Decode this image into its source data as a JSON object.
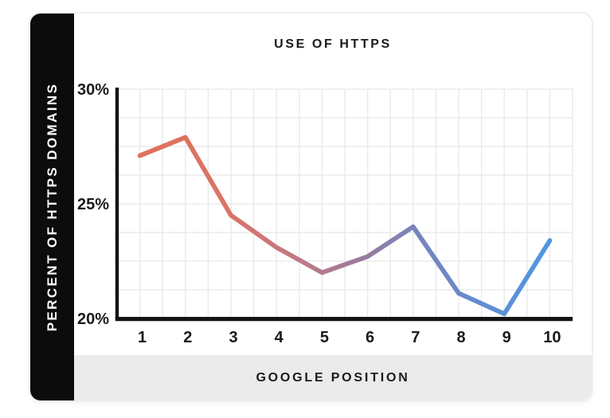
{
  "card": {
    "background": "#ffffff",
    "border_color": "#efefef",
    "sidebar_background": "#0c0c0c",
    "footer_background": "#ebebeb",
    "text_color": "#1b1b1b"
  },
  "chart_data": {
    "type": "line",
    "title": "USE OF HTTPS",
    "xlabel": "GOOGLE POSITION",
    "ylabel": "PERCENT OF HTTPS DOMAINS",
    "x": [
      1,
      2,
      3,
      4,
      5,
      6,
      7,
      8,
      9,
      10
    ],
    "x_tick_labels": [
      "1",
      "2",
      "3",
      "4",
      "5",
      "6",
      "7",
      "8",
      "9",
      "10"
    ],
    "series": [
      {
        "name": "Percent of HTTPS domains",
        "values": [
          27.1,
          27.9,
          24.5,
          23.1,
          22.0,
          22.7,
          24.0,
          21.1,
          20.2,
          23.4
        ]
      }
    ],
    "y_ticks": [
      {
        "value": 30,
        "label": "30%"
      },
      {
        "value": 25,
        "label": "25%"
      },
      {
        "value": 20,
        "label": "20%"
      }
    ],
    "ylim": [
      20,
      30
    ],
    "xlim": [
      0.5,
      10.5
    ],
    "grid": {
      "on": true,
      "x_step": 0.5,
      "y_step": 1.25,
      "color": "#e8e8e8"
    },
    "legend": "none",
    "axis_color": "#141414",
    "tick_label_color": "#1b1b1b",
    "line_width": 5.8,
    "line_gradient": [
      {
        "offset": 0.0,
        "color": "#e1705a"
      },
      {
        "offset": 0.22,
        "color": "#da7468"
      },
      {
        "offset": 0.4,
        "color": "#bd7a87"
      },
      {
        "offset": 0.55,
        "color": "#977ba0"
      },
      {
        "offset": 0.67,
        "color": "#7884bc"
      },
      {
        "offset": 1.0,
        "color": "#4e96e3"
      }
    ]
  }
}
